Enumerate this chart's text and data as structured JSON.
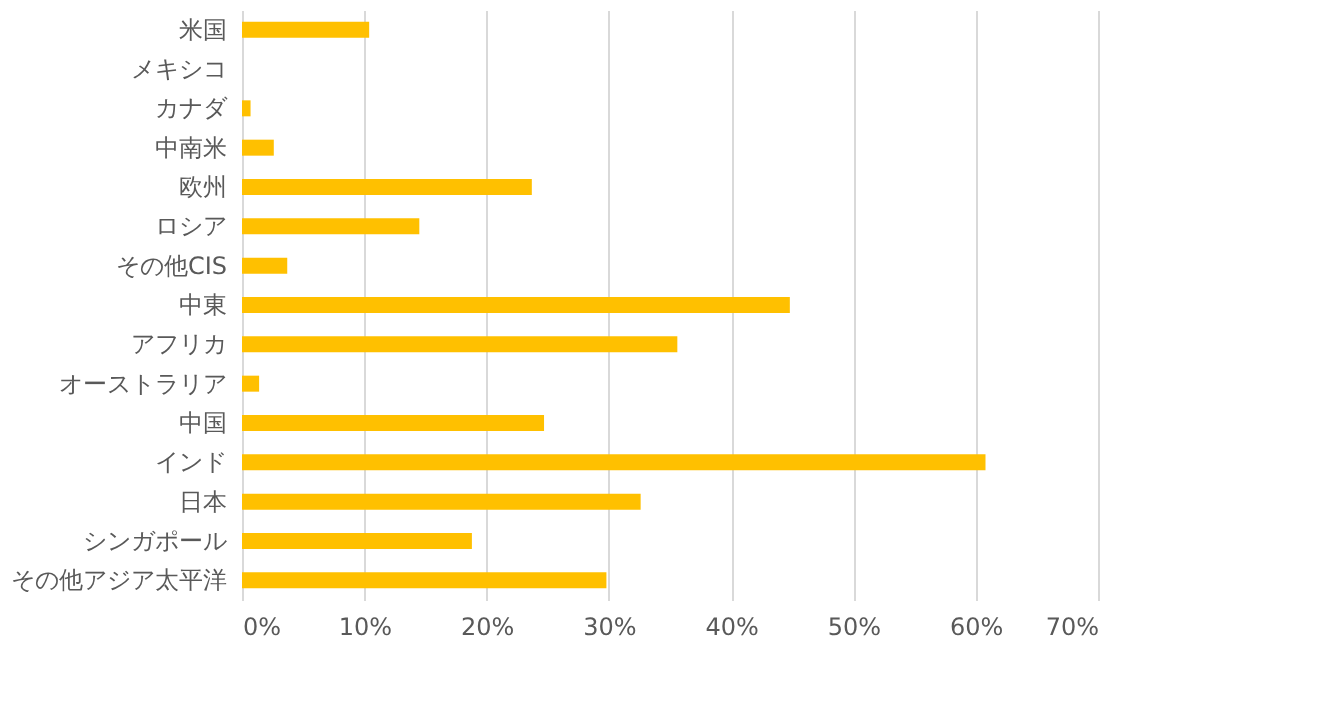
{
  "chart_data": {
    "type": "bar",
    "orientation": "horizontal",
    "categories": [
      "米国",
      "メキシコ",
      "カナダ",
      "中南米",
      "欧州",
      "ロシア",
      "その他CIS",
      "中東",
      "アフリカ",
      "オーストラリア",
      "中国",
      "インド",
      "日本",
      "シンガポール",
      "その他アジア太平洋"
    ],
    "values": [
      10.4,
      0,
      0.7,
      2.6,
      23.7,
      14.5,
      3.7,
      44.8,
      35.6,
      1.4,
      24.7,
      60.8,
      32.6,
      18.8,
      29.8
    ],
    "color": "#ffc000",
    "xlim": [
      0,
      70
    ],
    "xticks": [
      {
        "value": 0,
        "label": "0%"
      },
      {
        "value": 10,
        "label": "10%"
      },
      {
        "value": 20,
        "label": "20%"
      },
      {
        "value": 30,
        "label": "30%"
      },
      {
        "value": 40,
        "label": "40%"
      },
      {
        "value": 50,
        "label": "50%"
      },
      {
        "value": 60,
        "label": "60%"
      },
      {
        "value": 70,
        "label": "70%"
      }
    ],
    "grid": "x"
  }
}
